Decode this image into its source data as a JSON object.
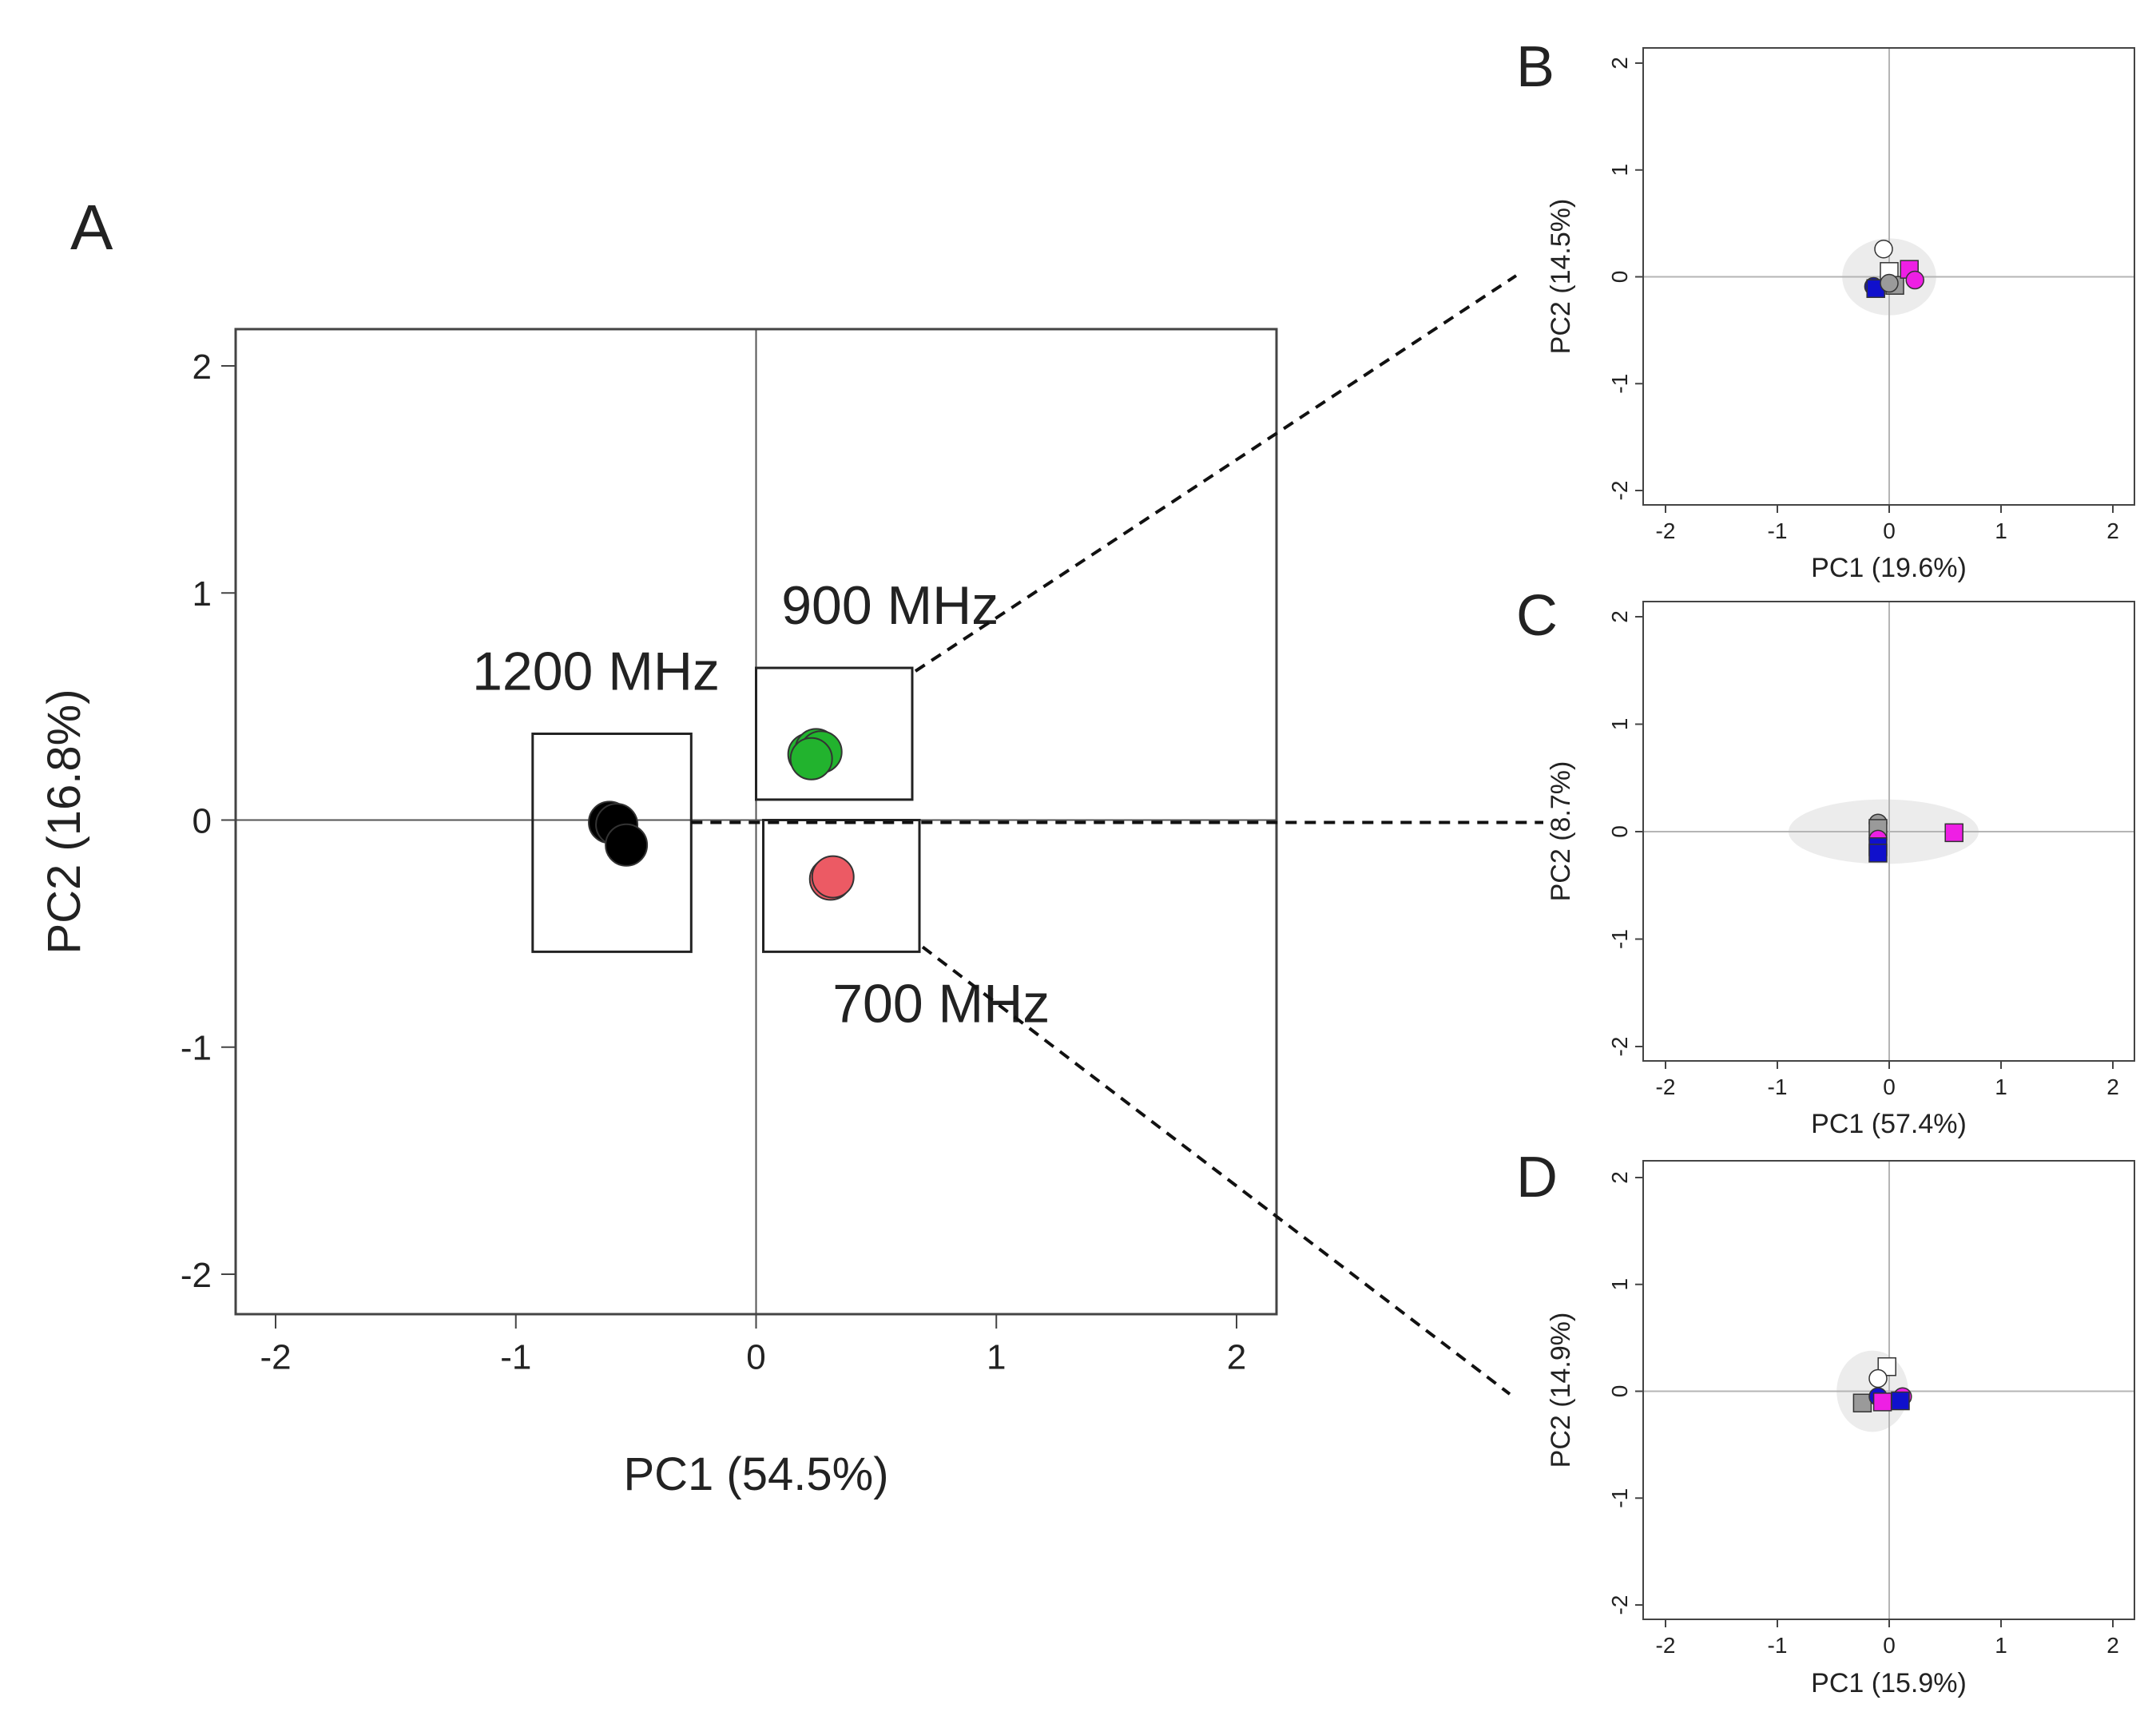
{
  "panel_labels": {
    "a": "A",
    "b": "B",
    "c": "C",
    "d": "D"
  },
  "colors": {
    "black": "#000000",
    "green": "#22b32e",
    "red": "#ec5a64",
    "blue": "#1010cc",
    "magenta": "#ee1fe4",
    "grey": "#9a9a9a",
    "white": "#ffffff",
    "ellipse": "#ececec",
    "axis": "#444444"
  },
  "chart_data": [
    {
      "id": "A",
      "type": "scatter",
      "xlabel": "PC1 (54.5%)",
      "ylabel": "PC2 (16.8%)",
      "xlim": [
        -2.15,
        2.15
      ],
      "ylim": [
        -2.15,
        2.15
      ],
      "xticks": [
        -2,
        -1,
        0,
        1,
        2
      ],
      "yticks": [
        -2,
        -1,
        0,
        1,
        2
      ],
      "tick_labels": [
        "-2",
        "-1",
        "0",
        "1",
        "2"
      ],
      "groups": [
        {
          "name": "1200 MHz",
          "color": "black",
          "box": [
            -0.93,
            -0.27,
            -0.58,
            0.38
          ],
          "points": [
            [
              -0.61,
              -0.01
            ],
            [
              -0.58,
              -0.02
            ],
            [
              -0.54,
              -0.11
            ]
          ]
        },
        {
          "name": "900 MHz",
          "color": "green",
          "box": [
            0.0,
            0.65,
            0.09,
            0.67
          ],
          "points": [
            [
              0.22,
              0.29
            ],
            [
              0.25,
              0.31
            ],
            [
              0.27,
              0.3
            ],
            [
              0.23,
              0.27
            ]
          ]
        },
        {
          "name": "700 MHz",
          "color": "red",
          "box": [
            0.03,
            0.68,
            -0.58,
            0.0
          ],
          "points": [
            [
              0.31,
              -0.26
            ],
            [
              0.32,
              -0.25
            ]
          ]
        }
      ]
    },
    {
      "id": "B",
      "type": "scatter",
      "xlabel": "PC1 (19.6%)",
      "ylabel": "PC2 (14.5%)",
      "xlim": [
        -2.15,
        2.15
      ],
      "ylim": [
        -2.15,
        2.15
      ],
      "xticks": [
        -2,
        -1,
        0,
        1,
        2
      ],
      "yticks": [
        -2,
        -1,
        0,
        1,
        2
      ],
      "tick_labels": [
        "-2",
        "-1",
        "0",
        "1",
        "2"
      ],
      "ellipse": {
        "cx": 0.0,
        "cy": 0.0,
        "rx": 0.42,
        "ry": 0.36
      },
      "points": [
        {
          "x": -0.05,
          "y": 0.26,
          "shape": "circle",
          "color": "white"
        },
        {
          "x": 0.0,
          "y": 0.05,
          "shape": "square",
          "color": "white"
        },
        {
          "x": -0.14,
          "y": -0.09,
          "shape": "circle",
          "color": "blue"
        },
        {
          "x": -0.12,
          "y": -0.11,
          "shape": "square",
          "color": "blue"
        },
        {
          "x": 0.05,
          "y": -0.08,
          "shape": "square",
          "color": "grey"
        },
        {
          "x": 0.0,
          "y": -0.06,
          "shape": "circle",
          "color": "grey"
        },
        {
          "x": 0.18,
          "y": 0.07,
          "shape": "square",
          "color": "magenta"
        },
        {
          "x": 0.23,
          "y": -0.03,
          "shape": "circle",
          "color": "magenta"
        }
      ]
    },
    {
      "id": "C",
      "type": "scatter",
      "xlabel": "PC1 (57.4%)",
      "ylabel": "PC2 (8.7%)",
      "xlim": [
        -2.15,
        2.15
      ],
      "ylim": [
        -2.15,
        2.15
      ],
      "xticks": [
        -2,
        -1,
        0,
        1,
        2
      ],
      "yticks": [
        -2,
        -1,
        0,
        1,
        2
      ],
      "tick_labels": [
        "-2",
        "-1",
        "0",
        "1",
        "2"
      ],
      "ellipse": {
        "cx": -0.05,
        "cy": 0.0,
        "rx": 0.85,
        "ry": 0.3
      },
      "points": [
        {
          "x": -0.1,
          "y": 0.08,
          "shape": "circle",
          "color": "grey"
        },
        {
          "x": -0.1,
          "y": 0.03,
          "shape": "square",
          "color": "grey"
        },
        {
          "x": -0.1,
          "y": -0.07,
          "shape": "circle",
          "color": "magenta"
        },
        {
          "x": -0.1,
          "y": -0.14,
          "shape": "square",
          "color": "blue"
        },
        {
          "x": -0.1,
          "y": -0.2,
          "shape": "square",
          "color": "blue"
        },
        {
          "x": 0.58,
          "y": -0.01,
          "shape": "square",
          "color": "magenta"
        }
      ]
    },
    {
      "id": "D",
      "type": "scatter",
      "xlabel": "PC1 (15.9%)",
      "ylabel": "PC2 (14.9%)",
      "xlim": [
        -2.15,
        2.15
      ],
      "ylim": [
        -2.15,
        2.15
      ],
      "xticks": [
        -2,
        -1,
        0,
        1,
        2
      ],
      "yticks": [
        -2,
        -1,
        0,
        1,
        2
      ],
      "tick_labels": [
        "-2",
        "-1",
        "0",
        "1",
        "2"
      ],
      "ellipse": {
        "cx": -0.15,
        "cy": 0.0,
        "rx": 0.32,
        "ry": 0.38
      },
      "points": [
        {
          "x": -0.02,
          "y": 0.23,
          "shape": "square",
          "color": "white"
        },
        {
          "x": -0.1,
          "y": 0.12,
          "shape": "circle",
          "color": "white"
        },
        {
          "x": -0.24,
          "y": -0.11,
          "shape": "square",
          "color": "grey"
        },
        {
          "x": -0.1,
          "y": -0.05,
          "shape": "circle",
          "color": "blue"
        },
        {
          "x": -0.06,
          "y": -0.1,
          "shape": "square",
          "color": "magenta"
        },
        {
          "x": 0.12,
          "y": -0.05,
          "shape": "circle",
          "color": "magenta"
        },
        {
          "x": 0.1,
          "y": -0.09,
          "shape": "square",
          "color": "blue"
        }
      ]
    }
  ]
}
